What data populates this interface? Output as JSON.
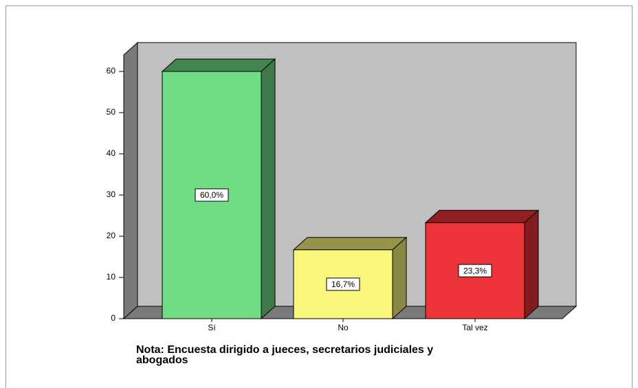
{
  "chart_data": {
    "type": "bar3d",
    "categories": [
      "Sí",
      "No",
      "Tal vez"
    ],
    "values": [
      60,
      16.7,
      23.3
    ],
    "value_labels": [
      "60,0%",
      "16,7%",
      "23,3%"
    ],
    "colors": [
      "#70dc84",
      "#f8f67b",
      "#ee3338"
    ],
    "ylim": [
      0,
      64
    ],
    "yticks": [
      0,
      10,
      20,
      30,
      40,
      50,
      60
    ],
    "note": [
      "Nota: Encuesta dirigido a jueces, secretarios judiciales y",
      "abogados"
    ]
  }
}
